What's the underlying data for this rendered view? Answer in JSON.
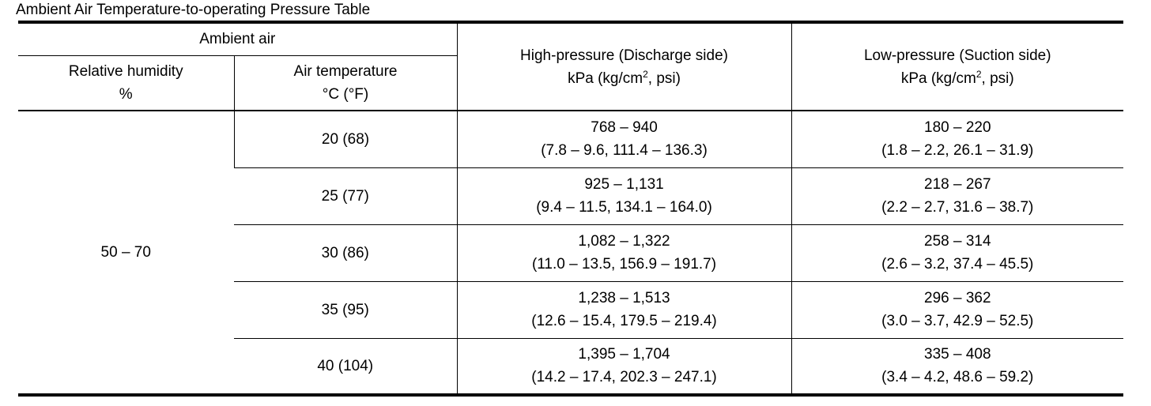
{
  "title": "Ambient Air Temperature-to-operating Pressure Table",
  "headers": {
    "ambient_air": "Ambient air",
    "relative_humidity": "Relative humidity",
    "relative_humidity_unit": "%",
    "air_temperature": "Air temperature",
    "air_temperature_unit": "°C (°F)",
    "high_pressure": "High-pressure (Discharge side)",
    "low_pressure": "Low-pressure (Suction side)",
    "pressure_unit_a": "kPa (kg/cm",
    "pressure_unit_sup": "2",
    "pressure_unit_b": ", psi)"
  },
  "humidity_value": "50 – 70",
  "rows": [
    {
      "temp": "20 (68)",
      "high_1": "768 – 940",
      "high_2": "(7.8 – 9.6, 111.4 – 136.3)",
      "low_1": "180 – 220",
      "low_2": "(1.8 – 2.2, 26.1 – 31.9)"
    },
    {
      "temp": "25 (77)",
      "high_1": "925 – 1,131",
      "high_2": "(9.4 – 11.5, 134.1 – 164.0)",
      "low_1": "218 – 267",
      "low_2": "(2.2 – 2.7, 31.6 – 38.7)"
    },
    {
      "temp": "30 (86)",
      "high_1": "1,082 – 1,322",
      "high_2": "(11.0 – 13.5, 156.9 – 191.7)",
      "low_1": "258 – 314",
      "low_2": "(2.6 – 3.2, 37.4 – 45.5)"
    },
    {
      "temp": "35 (95)",
      "high_1": "1,238 – 1,513",
      "high_2": "(12.6 – 15.4, 179.5 – 219.4)",
      "low_1": "296 – 362",
      "low_2": "(3.0 – 3.7, 42.9 – 52.5)"
    },
    {
      "temp": "40 (104)",
      "high_1": "1,395 – 1,704",
      "high_2": "(14.2 – 17.4, 202.3 – 247.1)",
      "low_1": "335 – 408",
      "low_2": "(3.4 – 4.2, 48.6 – 59.2)"
    }
  ]
}
